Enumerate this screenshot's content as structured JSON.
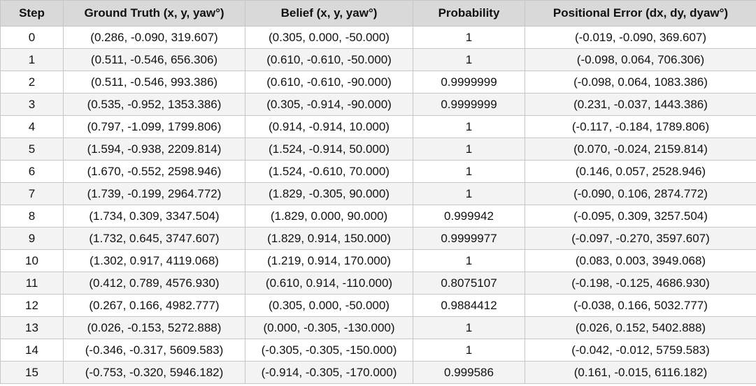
{
  "table": {
    "header": [
      "Step",
      "Ground Truth (x, y, yaw°)",
      "Belief (x, y, yaw°)",
      "Probability",
      "Positional Error (dx, dy, dyaw°)"
    ],
    "rows": [
      [
        "0",
        "(0.286, -0.090, 319.607)",
        "(0.305, 0.000, -50.000)",
        "1",
        "(-0.019, -0.090, 369.607)"
      ],
      [
        "1",
        "(0.511, -0.546, 656.306)",
        "(0.610, -0.610, -50.000)",
        "1",
        "(-0.098, 0.064, 706.306)"
      ],
      [
        "2",
        "(0.511, -0.546, 993.386)",
        "(0.610, -0.610, -90.000)",
        "0.9999999",
        "(-0.098, 0.064, 1083.386)"
      ],
      [
        "3",
        "(0.535, -0.952, 1353.386)",
        "(0.305, -0.914, -90.000)",
        "0.9999999",
        "(0.231, -0.037, 1443.386)"
      ],
      [
        "4",
        "(0.797, -1.099, 1799.806)",
        "(0.914, -0.914, 10.000)",
        "1",
        "(-0.117, -0.184, 1789.806)"
      ],
      [
        "5",
        "(1.594, -0.938, 2209.814)",
        "(1.524, -0.914, 50.000)",
        "1",
        "(0.070, -0.024, 2159.814)"
      ],
      [
        "6",
        "(1.670, -0.552, 2598.946)",
        "(1.524, -0.610, 70.000)",
        "1",
        "(0.146, 0.057, 2528.946)"
      ],
      [
        "7",
        "(1.739, -0.199, 2964.772)",
        "(1.829, -0.305, 90.000)",
        "1",
        "(-0.090, 0.106, 2874.772)"
      ],
      [
        "8",
        "(1.734, 0.309, 3347.504)",
        "(1.829, 0.000, 90.000)",
        "0.999942",
        "(-0.095, 0.309, 3257.504)"
      ],
      [
        "9",
        "(1.732, 0.645, 3747.607)",
        "(1.829, 0.914, 150.000)",
        "0.9999977",
        "(-0.097, -0.270, 3597.607)"
      ],
      [
        "10",
        "(1.302, 0.917, 4119.068)",
        "(1.219, 0.914, 170.000)",
        "1",
        "(0.083, 0.003, 3949.068)"
      ],
      [
        "11",
        "(0.412, 0.789, 4576.930)",
        "(0.610, 0.914, -110.000)",
        "0.8075107",
        "(-0.198, -0.125, 4686.930)"
      ],
      [
        "12",
        "(0.267, 0.166, 4982.777)",
        "(0.305, 0.000, -50.000)",
        "0.9884412",
        "(-0.038, 0.166, 5032.777)"
      ],
      [
        "13",
        "(0.026, -0.153, 5272.888)",
        "(0.000, -0.305, -130.000)",
        "1",
        "(0.026, 0.152, 5402.888)"
      ],
      [
        "14",
        "(-0.346, -0.317, 5609.583)",
        "(-0.305, -0.305, -150.000)",
        "1",
        "(-0.042, -0.012, 5759.583)"
      ],
      [
        "15",
        "(-0.753, -0.320, 5946.182)",
        "(-0.914, -0.305, -170.000)",
        "0.999586",
        "(0.161, -0.015, 6116.182)"
      ]
    ]
  }
}
